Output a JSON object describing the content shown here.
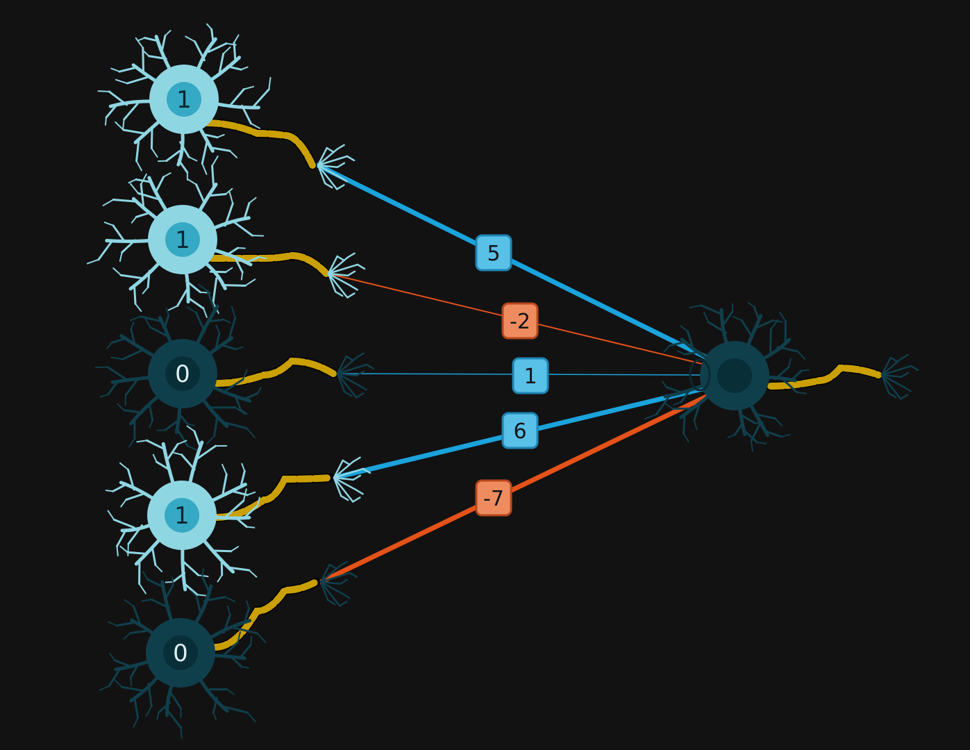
{
  "colors": {
    "background": "#121212",
    "active_neuron": "#8fd6e3",
    "active_nucleus": "#36a9c4",
    "inactive_neuron": "#103f4c",
    "inactive_nucleus": "#082e38",
    "axon": "#caa005",
    "positive_weight": "#1ba3dc",
    "negative_weight": "#e55219",
    "positive_badge": "#59c0e8",
    "negative_badge": "#ee8c60"
  },
  "input_neurons": [
    {
      "id": "n1",
      "value": "1",
      "active": true
    },
    {
      "id": "n2",
      "value": "1",
      "active": true
    },
    {
      "id": "n3",
      "value": "0",
      "active": false
    },
    {
      "id": "n4",
      "value": "1",
      "active": true
    },
    {
      "id": "n5",
      "value": "0",
      "active": false
    }
  ],
  "connections": [
    {
      "from": "n1",
      "weight": "5",
      "sign": "positive"
    },
    {
      "from": "n2",
      "weight": "-2",
      "sign": "negative"
    },
    {
      "from": "n3",
      "weight": "1",
      "sign": "positive"
    },
    {
      "from": "n4",
      "weight": "6",
      "sign": "positive"
    },
    {
      "from": "n5",
      "weight": "-7",
      "sign": "negative"
    }
  ],
  "output_neuron": {
    "id": "out",
    "active": false
  }
}
